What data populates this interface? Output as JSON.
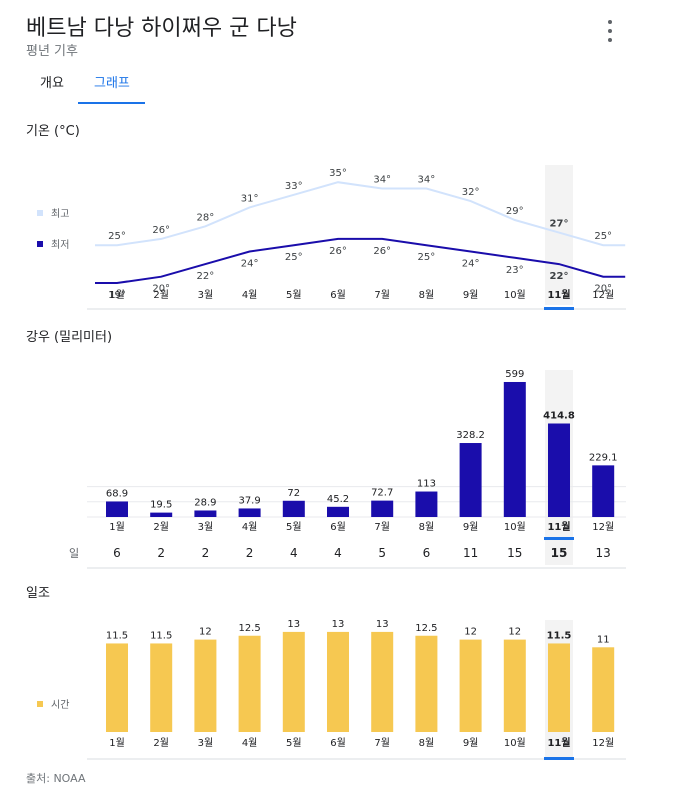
{
  "header": {
    "title": "베트남 다낭 하이쩌우 군 다낭",
    "subtitle": "평년 기후",
    "menu_icon": "more-vert-icon"
  },
  "tabs": [
    {
      "label": "개요",
      "selected": false
    },
    {
      "label": "그래프",
      "selected": true
    }
  ],
  "selected_month_index": 10,
  "months": [
    "1월",
    "2월",
    "3월",
    "4월",
    "5월",
    "6월",
    "7월",
    "8월",
    "9월",
    "10월",
    "11월",
    "12월"
  ],
  "colors": {
    "high": "#d2e3fc",
    "low": "#1a0dab",
    "rain": "#1a0dab",
    "sun": "#f6c851",
    "accent": "#1a73e8"
  },
  "temperature": {
    "title": "기온 (°C)",
    "legend_high": "최고",
    "legend_low": "최저"
  },
  "rain": {
    "title": "강우 (밀리미터)",
    "days_label": "일"
  },
  "sun": {
    "title": "일조",
    "legend": "시간"
  },
  "chart_data": [
    {
      "type": "line",
      "title": "기온 (°C)",
      "categories": [
        "1월",
        "2월",
        "3월",
        "4월",
        "5월",
        "6월",
        "7월",
        "8월",
        "9월",
        "10월",
        "11월",
        "12월"
      ],
      "series": [
        {
          "name": "최고",
          "values": [
            25,
            26,
            28,
            31,
            33,
            35,
            34,
            34,
            32,
            29,
            27,
            25
          ],
          "labels": [
            "25°",
            "26°",
            "28°",
            "31°",
            "33°",
            "35°",
            "34°",
            "34°",
            "32°",
            "29°",
            "27°",
            "25°"
          ]
        },
        {
          "name": "최저",
          "values": [
            19,
            20,
            22,
            24,
            25,
            26,
            26,
            25,
            24,
            23,
            22,
            20
          ],
          "labels": [
            "19°",
            "20°",
            "22°",
            "24°",
            "25°",
            "26°",
            "26°",
            "25°",
            "24°",
            "23°",
            "22°",
            "20°"
          ]
        }
      ]
    },
    {
      "type": "bar",
      "title": "강우 (밀리미터)",
      "categories": [
        "1월",
        "2월",
        "3월",
        "4월",
        "5월",
        "6월",
        "7월",
        "8월",
        "9월",
        "10월",
        "11월",
        "12월"
      ],
      "values": [
        68.9,
        19.5,
        28.9,
        37.9,
        72,
        45.2,
        72.7,
        113,
        328.2,
        599,
        414.8,
        229.1
      ],
      "labels": [
        "68.9",
        "19.5",
        "28.9",
        "37.9",
        "72",
        "45.2",
        "72.7",
        "113",
        "328.2",
        "599",
        "414.8",
        "229.1"
      ],
      "days": [
        "6",
        "2",
        "2",
        "2",
        "4",
        "4",
        "5",
        "6",
        "11",
        "15",
        "15",
        "13"
      ]
    },
    {
      "type": "bar",
      "title": "일조",
      "categories": [
        "1월",
        "2월",
        "3월",
        "4월",
        "5월",
        "6월",
        "7월",
        "8월",
        "9월",
        "10월",
        "11월",
        "12월"
      ],
      "series": [
        {
          "name": "시간",
          "values": [
            11.5,
            11.5,
            12,
            12.5,
            13,
            13,
            13,
            12.5,
            12,
            12,
            11.5,
            11
          ]
        }
      ],
      "labels": [
        "11.5",
        "11.5",
        "12",
        "12.5",
        "13",
        "13",
        "13",
        "12.5",
        "12",
        "12",
        "11.5",
        "11"
      ]
    }
  ],
  "source": "출처: NOAA"
}
